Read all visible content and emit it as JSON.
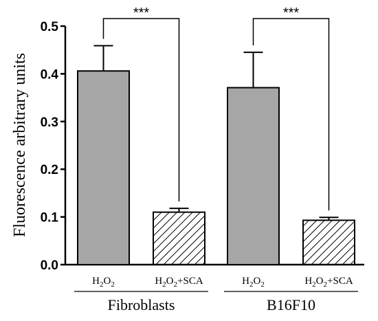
{
  "chart_data": {
    "type": "bar",
    "title": "",
    "ylabel": "Fluorescence arbitrary units",
    "xlabel": "",
    "ylim": [
      0,
      0.5
    ],
    "yticks": [
      "0.0",
      "0.1",
      "0.2",
      "0.3",
      "0.4",
      "0.5"
    ],
    "categories": [
      "H2O2",
      "H2O2+SCA",
      "H2O2",
      "H2O2+SCA"
    ],
    "values": [
      0.406,
      0.11,
      0.371,
      0.093
    ],
    "errors": [
      0.053,
      0.008,
      0.074,
      0.006
    ],
    "fills": [
      "gray",
      "hatched",
      "gray",
      "hatched"
    ],
    "colors": {
      "solid": "#a6a6a6",
      "hatch": "#000000",
      "outline": "#000000"
    },
    "groups": [
      {
        "label": "Fibroblasts",
        "categories": [
          0,
          1
        ]
      },
      {
        "label": "B16F10",
        "categories": [
          2,
          3
        ]
      }
    ],
    "comparisons": [
      {
        "between": [
          0,
          1
        ],
        "label": "***"
      },
      {
        "between": [
          2,
          3
        ],
        "label": "***"
      }
    ],
    "grid": false,
    "legend": "none"
  }
}
